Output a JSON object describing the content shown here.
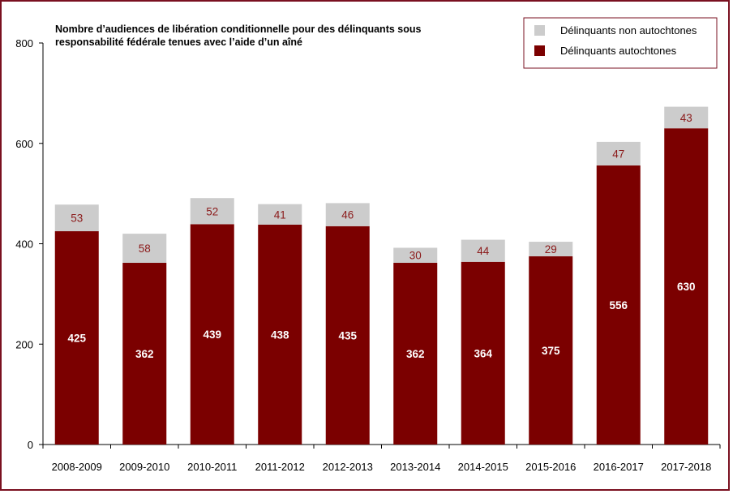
{
  "colors": {
    "autochtones": "#7b0000",
    "non_autochtones": "#cccccc",
    "frame": "#7a1020",
    "label_top": "#8b1a1a"
  },
  "chart_data": {
    "type": "bar",
    "stacked": true,
    "title_lines": [
      "Nombre d’audiences de libération conditionnelle pour des délinquants sous",
      "responsabilité fédérale tenues avec l’aide d’un aîné"
    ],
    "categories": [
      "2008-2009",
      "2009-2010",
      "2010-2011",
      "2011-2012",
      "2012-2013",
      "2013-2014",
      "2014-2015",
      "2015-2016",
      "2016-2017",
      "2017-2018"
    ],
    "series": [
      {
        "name": "Délinquants autochtones",
        "values": [
          425,
          362,
          439,
          438,
          435,
          362,
          364,
          375,
          556,
          630
        ]
      },
      {
        "name": "Délinquants non autochtones",
        "values": [
          53,
          58,
          52,
          41,
          46,
          30,
          44,
          29,
          47,
          43
        ]
      }
    ],
    "ylim": [
      0,
      800
    ],
    "yticks": [
      0,
      200,
      400,
      600,
      800
    ],
    "xlabel": "",
    "ylabel": "",
    "grid": false,
    "legend_position": "top-right"
  }
}
